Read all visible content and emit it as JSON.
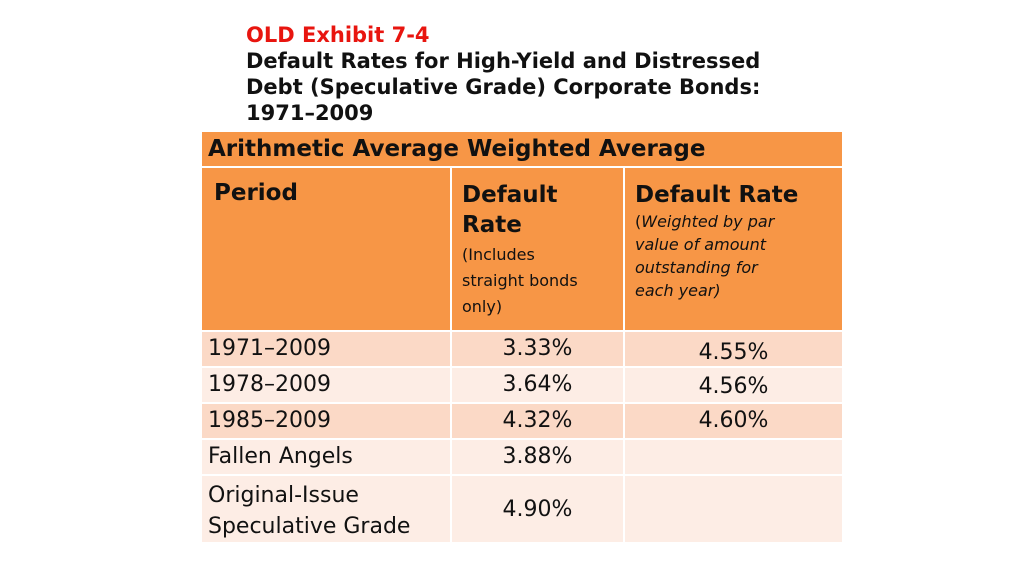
{
  "title": {
    "line1": "OLD Exhibit 7-4",
    "line2": "Default Rates for High-Yield and Distressed",
    "line3": "Debt (Speculative Grade) Corporate Bonds:",
    "line4": "1971–2009"
  },
  "table": {
    "band_label": "Arithmetic Average Weighted Average",
    "headers": {
      "period": "Period",
      "col2_main_a": "Default",
      "col2_main_b": "Rate",
      "col2_sub_a": "(Includes",
      "col2_sub_b": "straight bonds",
      "col2_sub_c": "only)",
      "col3_main": "Default Rate",
      "col3_sub_open": "(",
      "col3_sub_a": "Weighted by par",
      "col3_sub_b": "value of amount",
      "col3_sub_c": "outstanding for",
      "col3_sub_d": "each year)"
    },
    "rows": [
      {
        "period": "1971–2009",
        "arith": "3.33%",
        "weighted": "4.55%"
      },
      {
        "period": "1978–2009",
        "arith": "3.64%",
        "weighted": "4.56%"
      },
      {
        "period": "1985–2009",
        "arith": "4.32%",
        "weighted": "4.60%"
      },
      {
        "period": "Fallen Angels",
        "arith": "3.88%",
        "weighted": ""
      },
      {
        "period_a": "Original-Issue",
        "period_b": "Speculative Grade",
        "arith": "4.90%",
        "weighted": ""
      }
    ]
  },
  "colors": {
    "title_red": "#e8150f",
    "header_orange": "#f79646",
    "row_dark": "#fbd9c6",
    "row_light": "#fdede5"
  }
}
